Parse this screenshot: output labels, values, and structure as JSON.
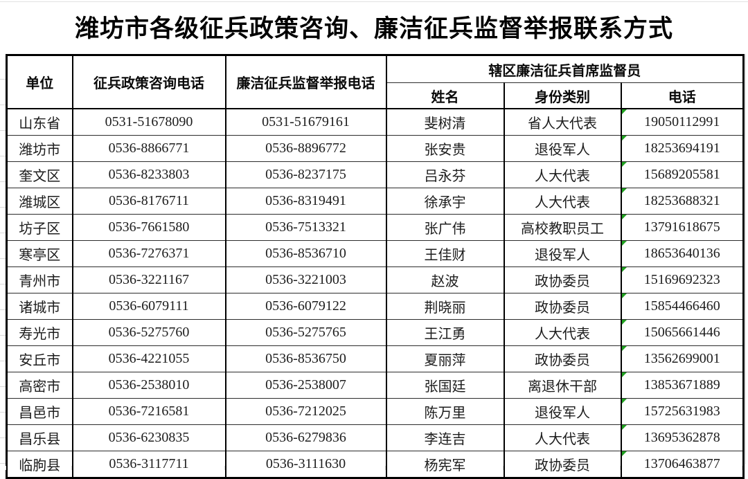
{
  "title": "潍坊市各级征兵政策咨询、廉洁征兵监督举报联系方式",
  "table": {
    "headers": {
      "unit": "单位",
      "policy_phone": "征兵政策咨询电话",
      "report_phone": "廉洁征兵监督举报电话",
      "supervisor_group": "辖区廉洁征兵首席监督员",
      "name": "姓名",
      "identity": "身份类别",
      "phone": "电话"
    },
    "rows": [
      {
        "unit": "山东省",
        "policy_phone": "0531-51678090",
        "report_phone": "0531-51679161",
        "name": "斐树清",
        "identity": "省人大代表",
        "phone": "19050112991"
      },
      {
        "unit": "潍坊市",
        "policy_phone": "0536-8866771",
        "report_phone": "0536-8896772",
        "name": "张安贵",
        "identity": "退役军人",
        "phone": "18253694191"
      },
      {
        "unit": "奎文区",
        "policy_phone": "0536-8233803",
        "report_phone": "0536-8237175",
        "name": "吕永芬",
        "identity": "人大代表",
        "phone": "15689205581"
      },
      {
        "unit": "潍城区",
        "policy_phone": "0536-8176711",
        "report_phone": "0536-8319491",
        "name": "徐承宇",
        "identity": "人大代表",
        "phone": "18253688321"
      },
      {
        "unit": "坊子区",
        "policy_phone": "0536-7661580",
        "report_phone": "0536-7513321",
        "name": "张广伟",
        "identity": "高校教职员工",
        "phone": "13791618675"
      },
      {
        "unit": "寒亭区",
        "policy_phone": "0536-7276371",
        "report_phone": "0536-8536710",
        "name": "王佳财",
        "identity": "退役军人",
        "phone": "18653640136"
      },
      {
        "unit": "青州市",
        "policy_phone": "0536-3221167",
        "report_phone": "0536-3221003",
        "name": "赵波",
        "identity": "政协委员",
        "phone": "15169692323"
      },
      {
        "unit": "诸城市",
        "policy_phone": "0536-6079111",
        "report_phone": "0536-6079122",
        "name": "荆晓丽",
        "identity": "政协委员",
        "phone": "15854466460"
      },
      {
        "unit": "寿光市",
        "policy_phone": "0536-5275760",
        "report_phone": "0536-5275765",
        "name": "王江勇",
        "identity": "人大代表",
        "phone": "15065661446"
      },
      {
        "unit": "安丘市",
        "policy_phone": "0536-4221055",
        "report_phone": "0536-8536750",
        "name": "夏丽萍",
        "identity": "政协委员",
        "phone": "13562699001"
      },
      {
        "unit": "高密市",
        "policy_phone": "0536-2538010",
        "report_phone": "0536-2538007",
        "name": "张国廷",
        "identity": "离退休干部",
        "phone": "13853671889"
      },
      {
        "unit": "昌邑市",
        "policy_phone": "0536-7216581",
        "report_phone": "0536-7212025",
        "name": "陈万里",
        "identity": "退役军人",
        "phone": "15725631983"
      },
      {
        "unit": "昌乐县",
        "policy_phone": "0536-6230835",
        "report_phone": "0536-6279836",
        "name": "李连吉",
        "identity": "人大代表",
        "phone": "13695362878"
      },
      {
        "unit": "临朐县",
        "policy_phone": "0536-3117711",
        "report_phone": "0536-3111630",
        "name": "杨宪军",
        "identity": "政协委员",
        "phone": "13706463877"
      }
    ]
  },
  "colors": {
    "table_border": "#000000",
    "text": "#1c1c1c",
    "text_marker_green": "#21a121",
    "faint_gridline": "#d9d9d9"
  }
}
